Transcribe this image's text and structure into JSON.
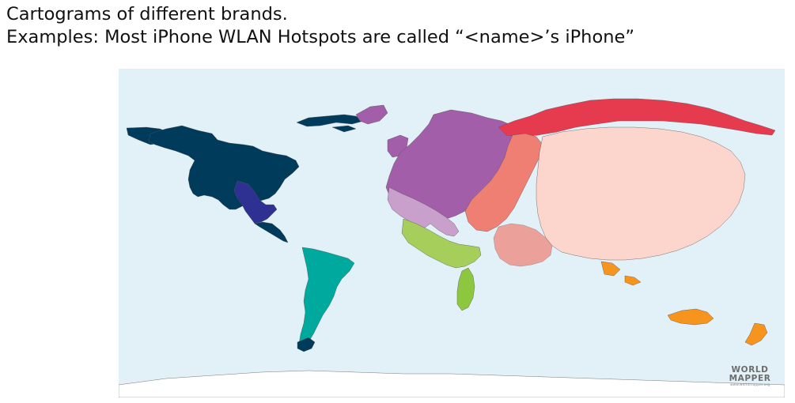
{
  "caption": {
    "line1": "Cartograms of different brands.",
    "line2": "Examples: Most iPhone WLAN Hotspots are called “<name>’s iPhone”"
  },
  "logo": {
    "line1": "WORLD",
    "line2": "MAPPER",
    "line3": "www.worldmapper.org"
  },
  "colors": {
    "ocean": "#e2f1f8",
    "north_america": "#003b5c",
    "central_america": "#2e3192",
    "south_america": "#00a99d",
    "europe": "#a25ea8",
    "europe_light": "#c9a0cc",
    "middle_east": "#f07f73",
    "asia": "#fcd5cc",
    "russia": "#e63b4e",
    "africa": "#a6ce5a",
    "africa_south": "#8dc63f",
    "oceania": "#f7941d",
    "antarctica": "#ffffff"
  }
}
